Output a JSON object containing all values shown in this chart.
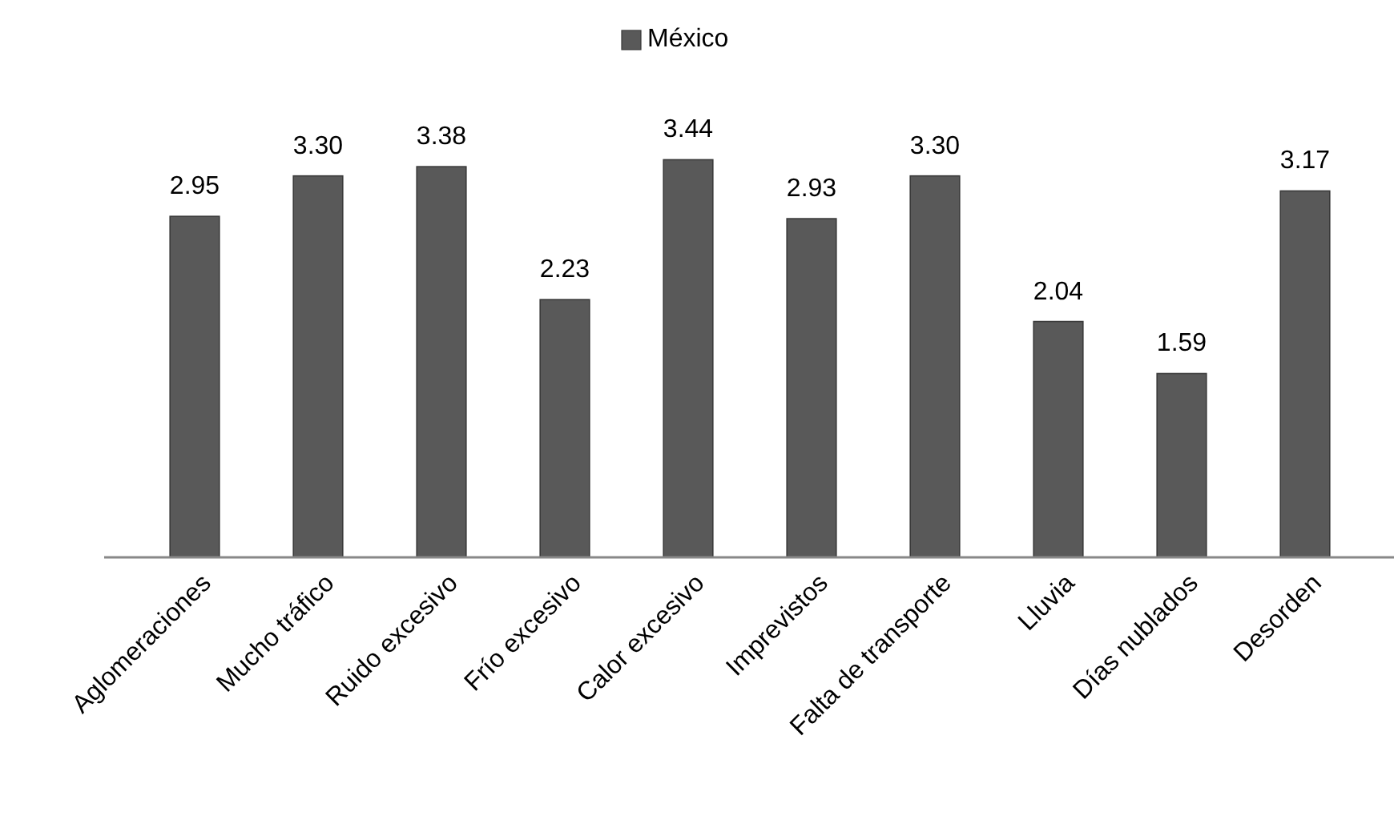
{
  "chart_data": {
    "type": "bar",
    "categories": [
      "Aglomeraciones",
      "Mucho tráfico",
      "Ruido excesivo",
      "Frío excesivo",
      "Calor excesivo",
      "Imprevistos",
      "Falta de transporte",
      "Lluvia",
      "Días nublados",
      "Desorden"
    ],
    "series": [
      {
        "name": "México",
        "color": "#595959",
        "values": [
          2.95,
          3.3,
          3.38,
          2.23,
          3.44,
          2.93,
          3.3,
          2.04,
          1.59,
          3.17
        ],
        "value_labels": [
          "2.95",
          "3.30",
          "3.38",
          "2.23",
          "3.44",
          "2.93",
          "3.30",
          "2.04",
          "1.59",
          "3.17"
        ]
      }
    ],
    "legend": "top"
  }
}
